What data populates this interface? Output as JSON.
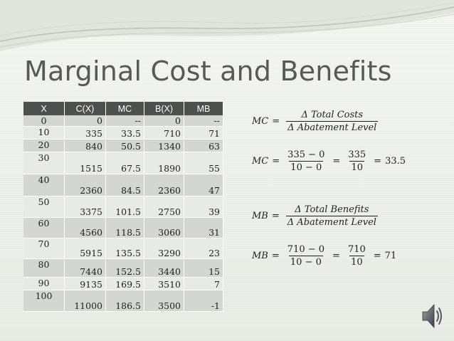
{
  "slide": {
    "title": "Marginal Cost and Benefits"
  },
  "table": {
    "headers": [
      "X",
      "C(X)",
      "MC",
      "B(X)",
      "MB"
    ],
    "rows": [
      [
        "0",
        "0",
        "--",
        "0",
        "--"
      ],
      [
        "10",
        "335",
        "33.5",
        "710",
        "71"
      ],
      [
        "20",
        "840",
        "50.5",
        "1340",
        "63"
      ],
      [
        "30",
        "1515",
        "67.5",
        "1890",
        "55"
      ],
      [
        "40",
        "2360",
        "84.5",
        "2360",
        "47"
      ],
      [
        "50",
        "3375",
        "101.5",
        "2750",
        "39"
      ],
      [
        "60",
        "4560",
        "118.5",
        "3060",
        "31"
      ],
      [
        "70",
        "5915",
        "135.5",
        "3290",
        "23"
      ],
      [
        "80",
        "7440",
        "152.5",
        "3440",
        "15"
      ],
      [
        "90",
        "9135",
        "169.5",
        "3510",
        "7"
      ],
      [
        "100",
        "11000",
        "186.5",
        "3500",
        "-1"
      ]
    ]
  },
  "formulas": {
    "mc_def": {
      "lhs": "MC",
      "num": "Δ Total Costs",
      "den": "Δ Abatement Level"
    },
    "mc_calc": {
      "lhs": "MC",
      "num1": "335 − 0",
      "den1": "10 − 0",
      "num2": "335",
      "den2": "10",
      "result": "33.5"
    },
    "mb_def": {
      "lhs": "MB",
      "num": "Δ Total Benefits",
      "den": "Δ Abatement Level"
    },
    "mb_calc": {
      "lhs": "MB",
      "num1": "710 − 0",
      "den1": "10 − 0",
      "num2": "710",
      "den2": "10",
      "result": "71"
    }
  },
  "symbols": {
    "equals": "="
  },
  "icons": {
    "audio": "speaker-icon"
  }
}
